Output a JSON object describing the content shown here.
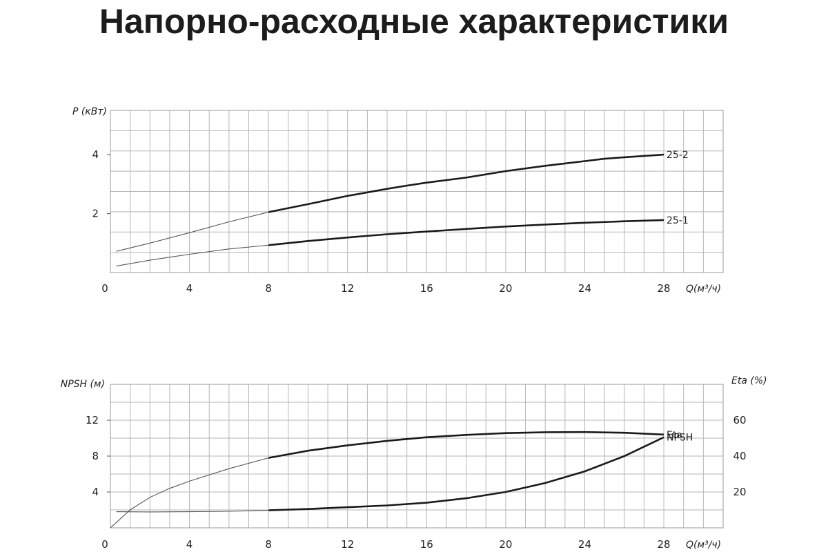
{
  "title": "Напорно-расходные характеристики",
  "chart_data": [
    {
      "type": "line",
      "ylabel": "P (кВт)",
      "xlabel": "Q(м³/ч)",
      "xlim": [
        0,
        31
      ],
      "ylim": [
        0,
        5.5
      ],
      "x_ticks": [
        0,
        4,
        8,
        12,
        16,
        20,
        24,
        28
      ],
      "y_ticks": [
        2,
        4
      ],
      "grid": true,
      "operating_range_start": 8,
      "series": [
        {
          "name": "25-2",
          "x": [
            0.3,
            2,
            4,
            6,
            8,
            10,
            12,
            14,
            15,
            16,
            18,
            20,
            22,
            24,
            25,
            26,
            28
          ],
          "y": [
            0.72,
            1.0,
            1.35,
            1.72,
            2.05,
            2.32,
            2.6,
            2.84,
            2.95,
            3.05,
            3.22,
            3.44,
            3.62,
            3.78,
            3.86,
            3.91,
            4.0
          ]
        },
        {
          "name": "25-1",
          "x": [
            0.3,
            2,
            4,
            6,
            8,
            10,
            12,
            14,
            16,
            18,
            20,
            22,
            24,
            26,
            28
          ],
          "y": [
            0.22,
            0.42,
            0.62,
            0.8,
            0.93,
            1.07,
            1.19,
            1.3,
            1.39,
            1.48,
            1.56,
            1.63,
            1.69,
            1.74,
            1.78
          ]
        }
      ]
    },
    {
      "type": "line",
      "ylabel": "NPSH (м)",
      "ylabel_right": "Eta (%)",
      "xlabel": "Q(м³/ч)",
      "xlim": [
        0,
        31
      ],
      "ylim": [
        0,
        16
      ],
      "ylim_right": [
        0,
        80
      ],
      "x_ticks": [
        0,
        4,
        8,
        12,
        16,
        20,
        24,
        28
      ],
      "y_ticks": [
        4,
        8,
        12
      ],
      "y_ticks_right": [
        20,
        40,
        60
      ],
      "grid": true,
      "operating_range_start": 8,
      "series": [
        {
          "name": "Eta",
          "axis": "right",
          "x": [
            0,
            1,
            2,
            3,
            4,
            6,
            8,
            10,
            12,
            14,
            16,
            18,
            20,
            22,
            24,
            26,
            28
          ],
          "y": [
            0,
            10,
            17,
            22,
            26,
            33,
            39,
            43,
            46,
            48.5,
            50.5,
            51.8,
            52.8,
            53.3,
            53.4,
            53.0,
            52.0
          ]
        },
        {
          "name": "NPSH",
          "axis": "left",
          "x": [
            0.3,
            2,
            4,
            6,
            8,
            10,
            12,
            14,
            16,
            18,
            20,
            22,
            24,
            26,
            28
          ],
          "y": [
            1.8,
            1.78,
            1.8,
            1.85,
            1.95,
            2.1,
            2.3,
            2.5,
            2.8,
            3.3,
            4.0,
            5.0,
            6.3,
            8.0,
            10.1
          ]
        }
      ]
    }
  ]
}
